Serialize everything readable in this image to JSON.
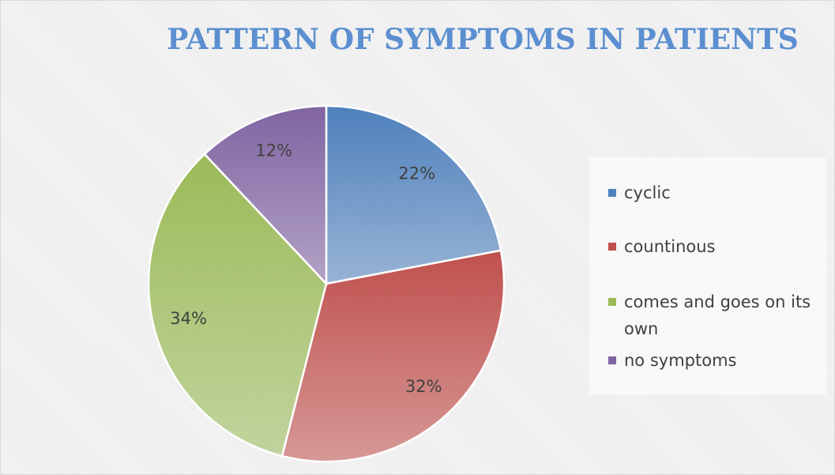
{
  "chart_data": {
    "type": "pie",
    "title": "PATTERN OF SYMPTOMS IN PATIENTS",
    "categories": [
      "cyclic",
      "countinous",
      "comes and goes on its own",
      "no symptoms"
    ],
    "values": [
      22,
      32,
      34,
      12
    ],
    "value_labels": [
      "22%",
      "32%",
      "34%",
      "12%"
    ],
    "colors": [
      "#4f81bd",
      "#c0504d",
      "#9bbb59",
      "#8064a2"
    ],
    "legend": "right"
  }
}
